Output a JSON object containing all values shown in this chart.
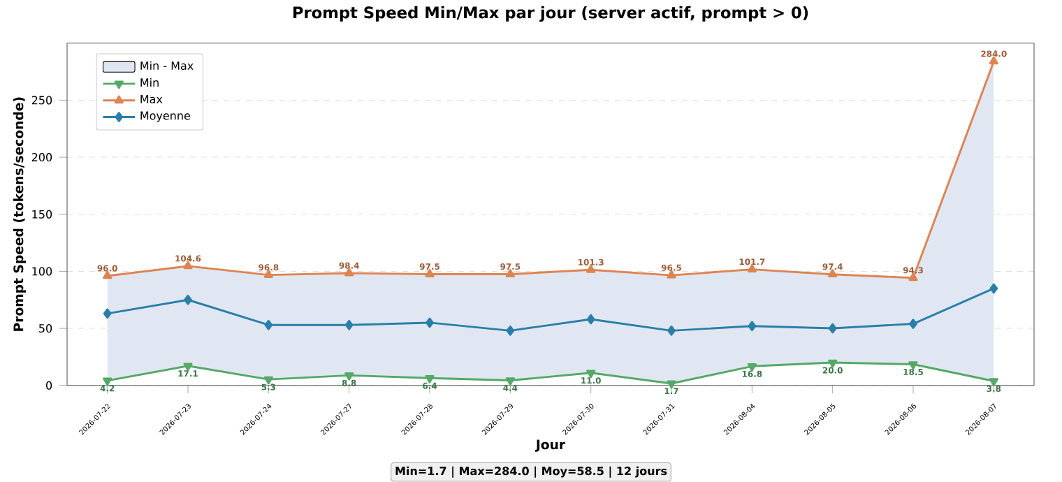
{
  "chart_data": {
    "type": "line",
    "title": "Prompt Speed Min/Max par jour (server actif, prompt > 0)",
    "xlabel": "Jour",
    "ylabel": "Prompt Speed (tokens/seconde)",
    "categories": [
      "2026-07-22",
      "2026-07-23",
      "2026-07-24",
      "2026-07-27",
      "2026-07-28",
      "2026-07-29",
      "2026-07-30",
      "2026-07-31",
      "2026-08-04",
      "2026-08-05",
      "2026-08-06",
      "2026-08-07"
    ],
    "series": [
      {
        "name": "Min - Max",
        "type": "area",
        "color": "#e1e7f2",
        "values": [
          null,
          null,
          null,
          null,
          null,
          null,
          null,
          null,
          null,
          null,
          null,
          null
        ],
        "lower": [
          4.2,
          17.1,
          5.3,
          8.8,
          6.4,
          4.4,
          11.0,
          1.7,
          16.8,
          20.0,
          18.5,
          3.8
        ],
        "upper": [
          96.0,
          104.6,
          96.8,
          98.4,
          97.5,
          97.5,
          101.3,
          96.5,
          101.7,
          97.4,
          94.3,
          284.0
        ]
      },
      {
        "name": "Min",
        "color": "#55a868",
        "marker": "triangle_down",
        "values": [
          4.2,
          17.1,
          5.3,
          8.8,
          6.4,
          4.4,
          11.0,
          1.7,
          16.8,
          20.0,
          18.5,
          3.8
        ],
        "value_labels": [
          "4.2",
          "17.1",
          "5.3",
          "8.8",
          "6.4",
          "4.4",
          "11.0",
          "1.7",
          "16.8",
          "20.0",
          "18.5",
          "3.8"
        ]
      },
      {
        "name": "Max",
        "color": "#dd8452",
        "marker": "triangle",
        "values": [
          96.0,
          104.6,
          96.8,
          98.4,
          97.5,
          97.5,
          101.3,
          96.5,
          101.7,
          97.4,
          94.3,
          284.0
        ],
        "value_labels": [
          "96.0",
          "104.6",
          "96.8",
          "98.4",
          "97.5",
          "97.5",
          "101.3",
          "96.5",
          "101.7",
          "97.4",
          "94.3",
          "284.0"
        ]
      },
      {
        "name": "Moyenne",
        "color": "#2a7fa8",
        "marker": "diamond",
        "values": [
          63,
          75,
          53,
          53,
          55,
          48,
          58,
          48,
          52,
          50,
          54,
          85
        ]
      }
    ],
    "ylim": [
      0,
      300
    ],
    "yticks": [
      0,
      50,
      100,
      150,
      200,
      250
    ],
    "grid": "y",
    "legend": "top left",
    "annotations": [
      "Min=1.7 | Max=284.0 | Moy=58.5 | 12 jours"
    ]
  }
}
